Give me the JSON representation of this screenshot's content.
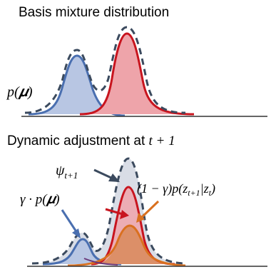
{
  "panels": [
    {
      "title": "Basis mixture distribution",
      "labels": {
        "p_mu": "p(𝝁)"
      }
    },
    {
      "title_prefix": "Dynamic adjustment at ",
      "title_math": "t + 1",
      "labels": {
        "psi": "ψ",
        "psi_sub": "t+1",
        "gamma_p_mu": "γ · p(𝝁)",
        "transition_prefix": "(1 − γ)p(z",
        "transition_sub1": "t+1",
        "transition_mid": "|z",
        "transition_sub2": "t",
        "transition_suffix": ")"
      }
    }
  ],
  "colors": {
    "blue_line": "#4a6fb0",
    "blue_fill": "#b8c6e3",
    "red_line": "#c8141e",
    "red_fill": "#eea4aa",
    "dashed": "#3b4a5e",
    "mixture_fill": "#d9dde6",
    "orange": "#d9701f",
    "orange_fill": "#d98a5a",
    "purple": "#6b3a7a",
    "axis": "#333333"
  }
}
